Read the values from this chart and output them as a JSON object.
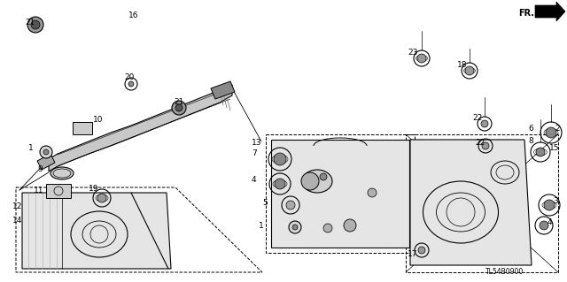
{
  "figsize": [
    6.4,
    3.19
  ],
  "dpi": 100,
  "bg_color": "#ffffff",
  "line_color": "#000000",
  "diagram_code": "TL54B0900"
}
